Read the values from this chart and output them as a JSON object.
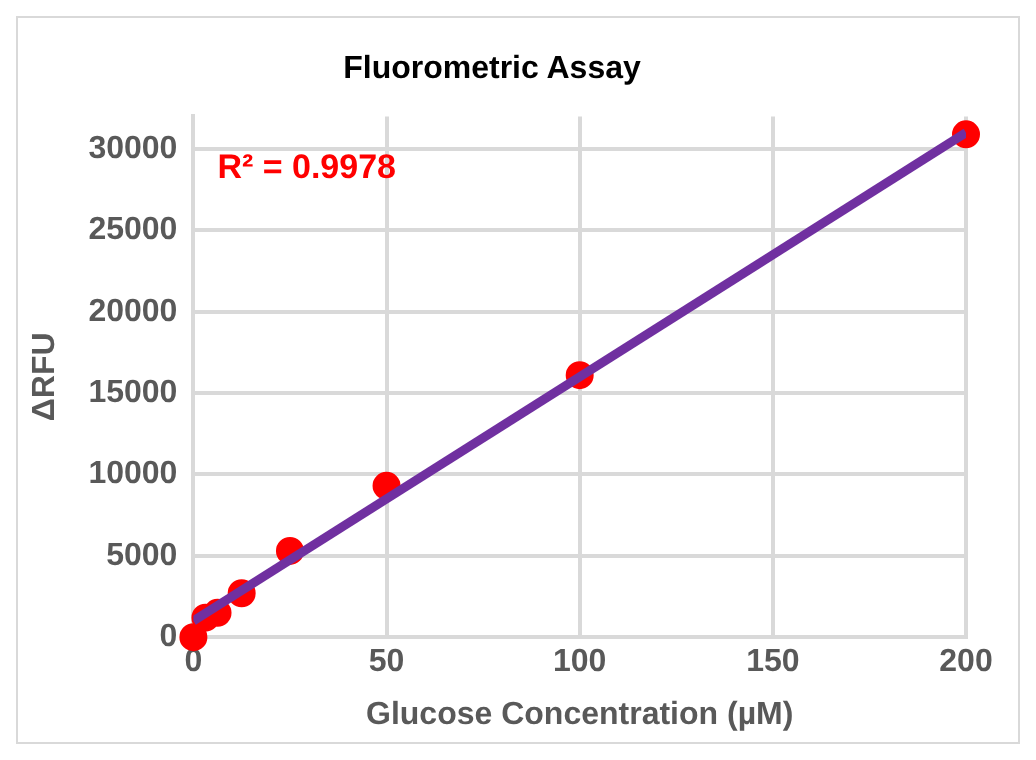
{
  "chart_data": {
    "type": "scatter",
    "title": "Fluorometric Assay",
    "xlabel": "Glucose Concentration (µM)",
    "ylabel": "ΔRFU",
    "annotations": [
      "R² = 0.9978"
    ],
    "series": [
      {
        "color": "#ff0000",
        "marker": "circle",
        "x": [
          0,
          3.125,
          6.25,
          12.5,
          25,
          50,
          100,
          200
        ],
        "values": [
          0,
          1200,
          1500,
          2700,
          5300,
          9300,
          16100,
          30900
        ]
      },
      {
        "type": "line",
        "color": "#7030a0",
        "x": [
          0,
          200
        ],
        "values": [
          1000,
          31000
        ]
      }
    ],
    "xlim": [
      0,
      200
    ],
    "xticks": [
      0,
      50,
      100,
      150,
      200
    ],
    "ylim": [
      0,
      32000
    ],
    "yticks": [
      0,
      5000,
      10000,
      15000,
      20000,
      25000,
      30000
    ],
    "grid": true,
    "legend": false
  }
}
